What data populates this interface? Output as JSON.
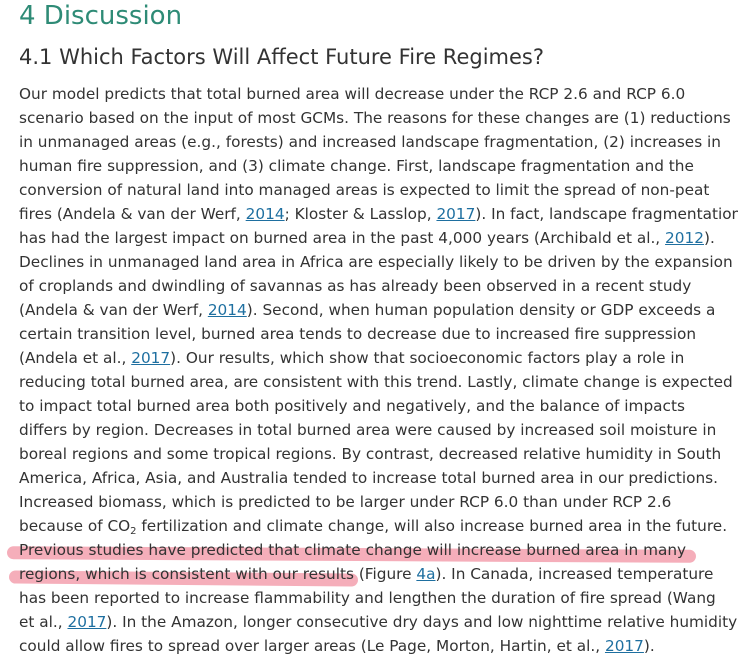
{
  "section": {
    "heading": "4 Discussion"
  },
  "subsection": {
    "heading": "4.1 Which Factors Will Affect Future Fire Regimes?"
  },
  "paragraph": {
    "l1": "Our model predicts that total burned area will decrease under the RCP 2.6 and RCP 6.0",
    "l2": "scenario based on the input of most GCMs. The reasons for these changes are (1) reductions",
    "l3": "in unmanaged areas (e.g., forests) and increased landscape fragmentation, (2) increases in",
    "l4": "human fire suppression, and (3) climate change. First, landscape fragmentation and the",
    "l5": "conversion of natural land into managed areas is expected to limit the spread of non-peat",
    "l6_a": "fires (Andela & van der Werf, ",
    "l6_c1": "2014",
    "l6_b": "; Kloster & Lasslop, ",
    "l6_c2": "2017",
    "l6_d": "). In fact, landscape fragmentation",
    "l7_a": "has had the largest impact on burned area in the past 4,000 years (Archibald et al., ",
    "l7_c": "2012",
    "l7_b": ").",
    "l8": "Declines in unmanaged land area in Africa are especially likely to be driven by the expansion",
    "l9": "of croplands and dwindling of savannas as has already been observed in a recent study",
    "l10_a": "(Andela & van der Werf, ",
    "l10_c": "2014",
    "l10_b": "). Second, when human population density or GDP exceeds a",
    "l11": "certain transition level, burned area tends to decrease due to increased fire suppression",
    "l12_a": "(Andela et al., ",
    "l12_c": "2017",
    "l12_b": "). Our results, which show that socioeconomic factors play a role in",
    "l13": "reducing total burned area, are consistent with this trend. Lastly, climate change is expected",
    "l14": "to impact total burned area both positively and negatively, and the balance of impacts",
    "l15": "differs by region. Decreases in total burned area were caused by increased soil moisture in",
    "l16": "boreal regions and some tropical regions. By contrast, decreased relative humidity in South",
    "l17": "America, Africa, Asia, and Australia tended to increase total burned area in our predictions.",
    "l18": "Increased biomass, which is predicted to be larger under RCP 6.0 than under RCP 2.6",
    "l19_a": "because of CO",
    "l19_sub": "2",
    "l19_b": " fertilization and climate change, will also increase burned area in the future.",
    "l20_hl": "Previous studies have predicted that climate change will increase burned area in many",
    "l21_hl": "regions, which is consistent with our results",
    "l21_a": " (Figure ",
    "l21_c": "4a",
    "l21_b": "). In Canada, increased temperature",
    "l22": "has been reported to increase flammability and lengthen the duration of fire spread (Wang",
    "l23_a": "et al., ",
    "l23_c": "2017",
    "l23_b": "). In the Amazon, longer consecutive dry days and low nighttime relative humidity",
    "l24_a": "could allow fires to spread over larger areas (Le Page, Morton, Hartin, et al., ",
    "l24_c": "2017",
    "l24_b": ")."
  },
  "colors": {
    "heading_accent": "#2e8b76",
    "link": "#1e6fa0",
    "highlight": "#f3a0ae"
  }
}
